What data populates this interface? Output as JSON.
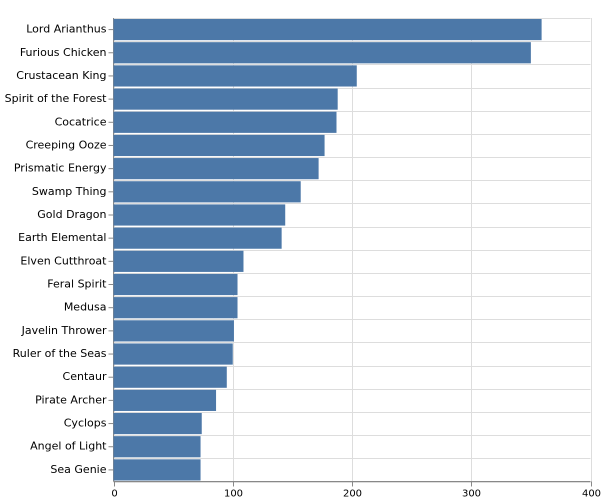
{
  "chart_data": {
    "type": "hbar",
    "categories": [
      "Lord Arianthus",
      "Furious Chicken",
      "Crustacean King",
      "Spirit of the Forest",
      "Cocatrice",
      "Creeping Ooze",
      "Prismatic Energy",
      "Swamp Thing",
      "Gold Dragon",
      "Earth Elemental",
      "Elven Cutthroat",
      "Feral Spirit",
      "Medusa",
      "Javelin Thrower",
      "Ruler of the Seas",
      "Centaur",
      "Pirate Archer",
      "Cyclops",
      "Angel of Light",
      "Sea Genie"
    ],
    "values": [
      359,
      350,
      204,
      188,
      187,
      177,
      172,
      157,
      144,
      141,
      109,
      104,
      104,
      101,
      100,
      95,
      86,
      74,
      73,
      73
    ],
    "color": "#4c78a8",
    "xlim": [
      0,
      400
    ],
    "xticks": [
      0,
      100,
      200,
      300,
      400
    ],
    "grid": true
  }
}
